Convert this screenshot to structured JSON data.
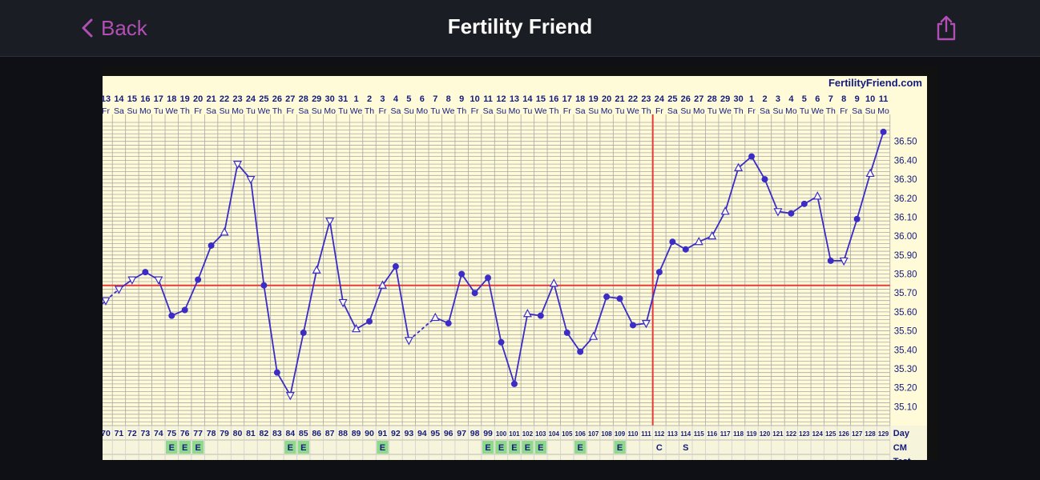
{
  "nav": {
    "back_label": "Back",
    "title": "Fertility Friend",
    "back_icon": "chevron-left-icon",
    "share_icon": "share-icon",
    "accent": "#b14fb5"
  },
  "chart_brand": "FertilityFriend.com",
  "chart_data": {
    "type": "line",
    "dates": [
      "13",
      "14",
      "15",
      "16",
      "17",
      "18",
      "19",
      "20",
      "21",
      "22",
      "23",
      "24",
      "25",
      "26",
      "27",
      "28",
      "29",
      "30",
      "31",
      "1",
      "2",
      "3",
      "4",
      "5",
      "6",
      "7",
      "8",
      "9",
      "10",
      "11",
      "12",
      "13",
      "14",
      "15",
      "16",
      "17",
      "18",
      "19",
      "20",
      "21",
      "22",
      "23",
      "24",
      "25",
      "26",
      "27",
      "28",
      "29",
      "30",
      "1",
      "2",
      "3",
      "4",
      "5",
      "6",
      "7",
      "8",
      "9",
      "10",
      "11"
    ],
    "weekdays": [
      "Fr",
      "Sa",
      "Su",
      "Mo",
      "Tu",
      "We",
      "Th",
      "Fr",
      "Sa",
      "Su",
      "Mo",
      "Tu",
      "We",
      "Th",
      "Fr",
      "Sa",
      "Su",
      "Mo",
      "Tu",
      "We",
      "Th",
      "Fr",
      "Sa",
      "Su",
      "Mo",
      "Tu",
      "We",
      "Th",
      "Fr",
      "Sa",
      "Su",
      "Mo",
      "Tu",
      "We",
      "Th",
      "Fr",
      "Sa",
      "Su",
      "Mo",
      "Tu",
      "We",
      "Th",
      "Fr",
      "Sa",
      "Su",
      "Mo",
      "Tu",
      "We",
      "Th",
      "Fr",
      "Sa",
      "Su",
      "Mo",
      "Tu",
      "We",
      "Th",
      "Fr",
      "Sa",
      "Su",
      "Mo"
    ],
    "cycle_days": [
      70,
      71,
      72,
      73,
      74,
      75,
      76,
      77,
      78,
      79,
      80,
      81,
      82,
      83,
      84,
      85,
      86,
      87,
      88,
      89,
      90,
      91,
      92,
      93,
      94,
      95,
      96,
      97,
      98,
      99,
      100,
      101,
      102,
      103,
      104,
      105,
      106,
      107,
      108,
      109,
      110,
      111,
      112,
      113,
      114,
      115,
      116,
      117,
      118,
      119,
      120,
      121,
      122,
      123,
      124,
      125,
      126,
      127,
      128,
      129
    ],
    "temperatures": [
      35.66,
      35.72,
      35.77,
      35.81,
      35.77,
      35.58,
      35.61,
      35.77,
      35.95,
      36.02,
      36.38,
      36.3,
      35.74,
      35.28,
      35.16,
      35.49,
      35.82,
      36.08,
      35.65,
      35.51,
      35.55,
      35.74,
      35.84,
      35.45,
      null,
      35.57,
      35.54,
      35.8,
      35.7,
      35.78,
      35.44,
      35.22,
      35.59,
      35.58,
      35.75,
      35.49,
      35.39,
      35.47,
      35.68,
      35.67,
      35.53,
      35.54,
      35.81,
      35.97,
      35.93,
      35.97,
      36.0,
      36.13,
      36.36,
      36.42,
      36.3,
      36.13,
      36.12,
      36.17,
      36.21,
      35.87,
      35.87,
      36.09,
      36.33,
      36.55
    ],
    "point_markers": [
      "tri-down",
      "tri-down",
      "tri-down",
      "dot",
      "tri-down",
      "dot",
      "dot",
      "dot",
      "dot",
      "tri-up",
      "tri-down",
      "tri-down",
      "dot",
      "dot",
      "tri-down",
      "dot",
      "tri-up",
      "tri-down",
      "tri-down",
      "tri-up",
      "dot",
      "tri-up",
      "dot",
      "tri-down",
      "none",
      "tri-up",
      "dot",
      "dot",
      "dot",
      "dot",
      "dot",
      "dot",
      "tri-up",
      "dot",
      "tri-up",
      "dot",
      "dot",
      "tri-up",
      "dot",
      "dot",
      "dot",
      "tri-down",
      "dot",
      "dot",
      "dot",
      "tri-up",
      "tri-up",
      "tri-up",
      "tri-up",
      "dot",
      "dot",
      "tri-down",
      "dot",
      "dot",
      "tri-up",
      "dot",
      "tri-down",
      "dot",
      "tri-up",
      "dot"
    ],
    "dashed_segments": [
      [
        0,
        1
      ],
      [
        23,
        25
      ]
    ],
    "y_tick_labels": [
      "36.50",
      "36.40",
      "36.30",
      "36.20",
      "36.10",
      "36.00",
      "35.90",
      "35.80",
      "35.70",
      "35.60",
      "35.50",
      "35.40",
      "35.30",
      "35.20",
      "35.10"
    ],
    "ylim": [
      35.0,
      36.6
    ],
    "coverline": 35.74,
    "ovulation_day_index": 41,
    "row_labels": {
      "day": "Day",
      "cm": "CM",
      "test": "Test"
    },
    "cm_entries": [
      "",
      "",
      "",
      "",
      "",
      "E",
      "E",
      "E",
      "",
      "",
      "",
      "",
      "",
      "",
      "E",
      "E",
      "",
      "",
      "",
      "",
      "",
      "E",
      "",
      "",
      "",
      "",
      "",
      "",
      "",
      "E",
      "E",
      "E",
      "E",
      "E",
      "",
      "",
      "E",
      "",
      "",
      "E",
      "",
      "",
      "C",
      "",
      "S",
      "",
      "",
      "",
      "",
      "",
      "",
      "",
      "",
      "",
      "",
      "",
      "",
      "",
      "",
      ""
    ],
    "colors": {
      "background": "#fffbd8",
      "grid": "#a8a8a8",
      "line": "#3b2cc6",
      "coverline": "#e73a3a",
      "ovulation": "#e73a3a",
      "text": "#131b7e",
      "cm_highlight": "#8ed98b"
    }
  }
}
